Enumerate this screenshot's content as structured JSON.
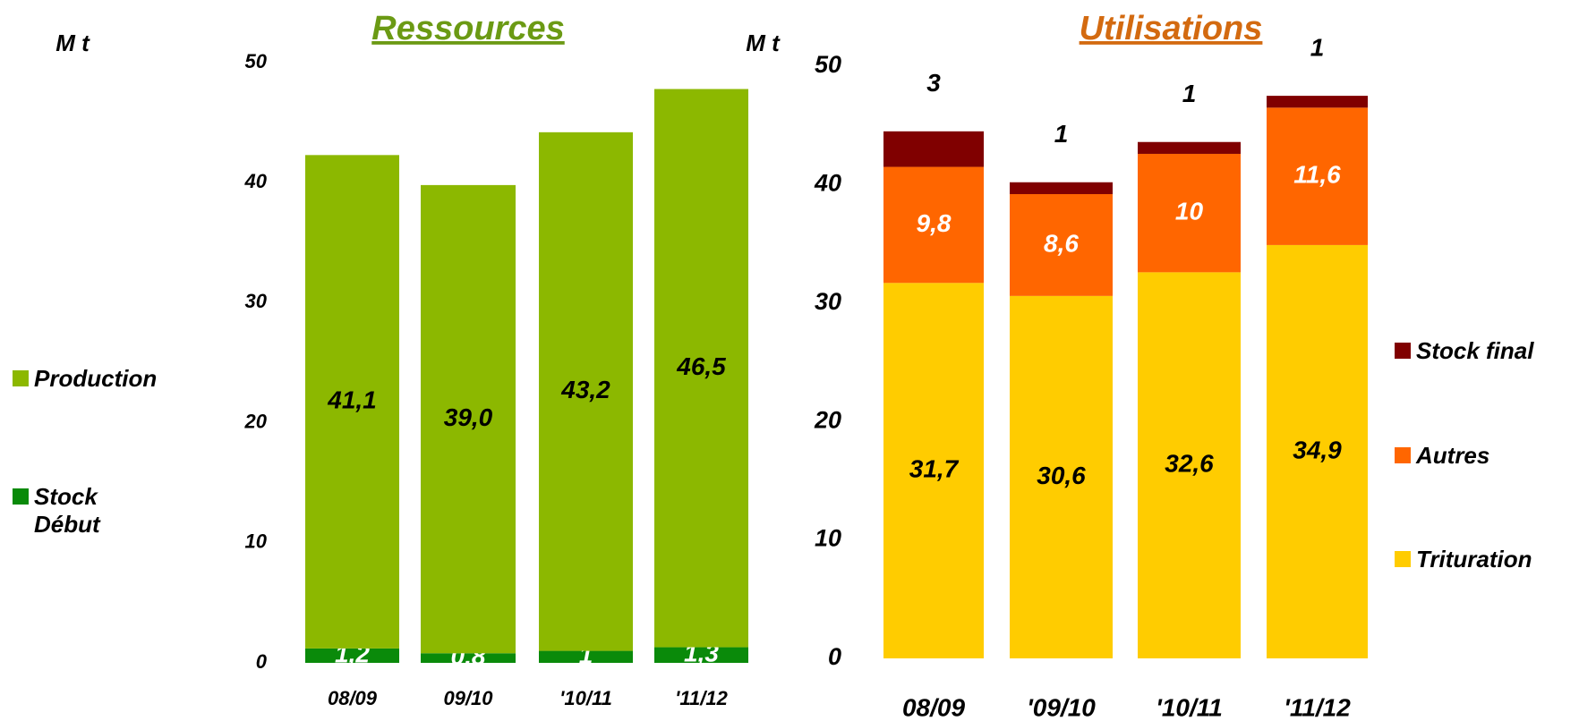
{
  "chart_data": [
    {
      "type": "stacked_bar",
      "title": "Ressources",
      "title_color": "#6b9a14",
      "y_label": "M t",
      "categories": [
        "08/09",
        "09/10",
        "'10/11",
        "'11/12"
      ],
      "ylim": [
        0,
        50
      ],
      "yticks": [
        0,
        10,
        20,
        30,
        40,
        50
      ],
      "series": [
        {
          "name": "Stock Début",
          "color": "#0a8a0a",
          "label_color": "#ffffff",
          "values": [
            1.2,
            0.8,
            1,
            1.3
          ],
          "value_labels": [
            "1,2",
            "0,8",
            "1",
            "1,3"
          ]
        },
        {
          "name": "Production",
          "color": "#8cb800",
          "label_color": "#000000",
          "values": [
            41.1,
            39.0,
            43.2,
            46.5
          ],
          "value_labels": [
            "41,1",
            "39,0",
            "43,2",
            "46,5"
          ]
        }
      ]
    },
    {
      "type": "stacked_bar",
      "title": "Utilisations",
      "title_color": "#d36a10",
      "y_label": "M t",
      "categories": [
        "08/09",
        "'09/10",
        "'10/11",
        "'11/12"
      ],
      "ylim": [
        0,
        50
      ],
      "yticks": [
        0,
        10,
        20,
        30,
        40,
        50
      ],
      "series": [
        {
          "name": "Trituration",
          "color": "#ffcc00",
          "label_color": "#000000",
          "values": [
            31.7,
            30.6,
            32.6,
            34.9
          ],
          "value_labels": [
            "31,7",
            "30,6",
            "32,6",
            "34,9"
          ]
        },
        {
          "name": "Autres",
          "color": "#ff6600",
          "label_color": "#ffffff",
          "values": [
            9.8,
            8.6,
            10,
            11.6
          ],
          "value_labels": [
            "9,8",
            "8,6",
            "10",
            "11,6"
          ]
        },
        {
          "name": "Stock final",
          "color": "#800000",
          "label_color": "#000000",
          "label_position": "above",
          "values": [
            3,
            1,
            1,
            1
          ]
        }
      ]
    }
  ]
}
